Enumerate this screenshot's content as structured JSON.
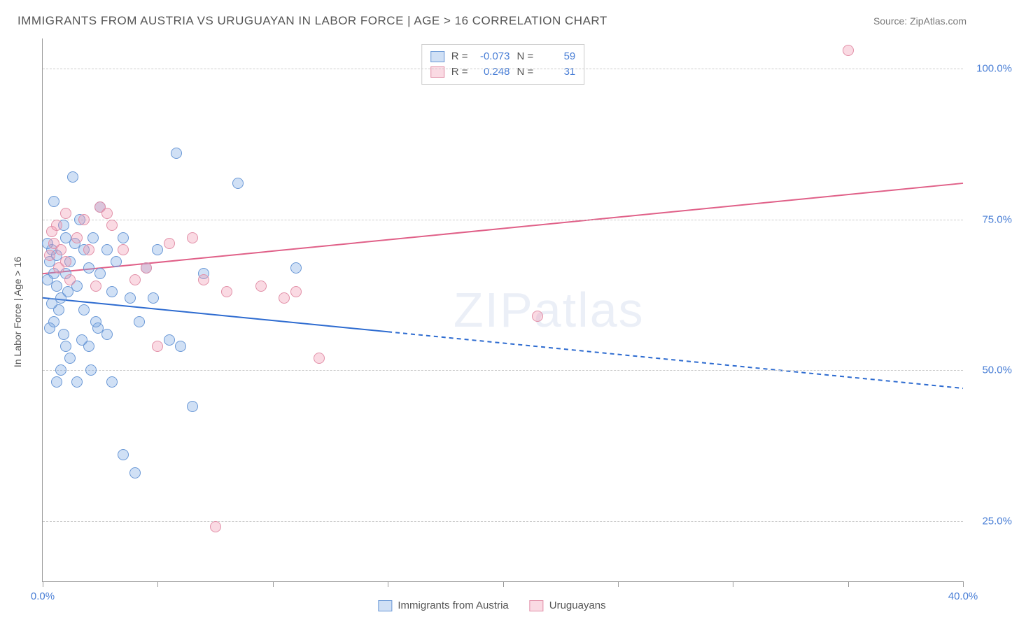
{
  "header": {
    "title": "IMMIGRANTS FROM AUSTRIA VS URUGUAYAN IN LABOR FORCE | AGE > 16 CORRELATION CHART",
    "source": "Source: ZipAtlas.com"
  },
  "watermark": "ZIPatlas",
  "chart": {
    "type": "scatter",
    "ylabel": "In Labor Force | Age > 16",
    "xlim": [
      0,
      40
    ],
    "ylim": [
      15,
      105
    ],
    "yticks": [
      {
        "value": 25,
        "label": "25.0%"
      },
      {
        "value": 50,
        "label": "50.0%"
      },
      {
        "value": 75,
        "label": "75.0%"
      },
      {
        "value": 100,
        "label": "100.0%"
      }
    ],
    "xticks_major": [
      0,
      40
    ],
    "xticks_minor": [
      5,
      10,
      15,
      20,
      25,
      30,
      35
    ],
    "xtick_labels": [
      {
        "value": 0,
        "label": "0.0%"
      },
      {
        "value": 40,
        "label": "40.0%"
      }
    ],
    "background": "#ffffff",
    "grid_color": "#cccccc",
    "axis_color": "#999999",
    "series": [
      {
        "name": "Immigrants from Austria",
        "fill": "rgba(120,165,225,0.35)",
        "stroke": "#6a98d6",
        "marker_radius": 8,
        "R": "-0.073",
        "N": "59",
        "trend": {
          "x1": 0,
          "y1": 62,
          "x2": 40,
          "y2": 47,
          "solid_until_x": 15,
          "color": "#2d6bd0",
          "width": 2
        },
        "points": [
          {
            "x": 0.3,
            "y": 68
          },
          {
            "x": 0.5,
            "y": 66
          },
          {
            "x": 0.6,
            "y": 64
          },
          {
            "x": 0.4,
            "y": 70
          },
          {
            "x": 0.8,
            "y": 62
          },
          {
            "x": 0.5,
            "y": 58
          },
          {
            "x": 0.7,
            "y": 60
          },
          {
            "x": 0.9,
            "y": 56
          },
          {
            "x": 1.0,
            "y": 72
          },
          {
            "x": 0.2,
            "y": 65
          },
          {
            "x": 0.6,
            "y": 69
          },
          {
            "x": 1.2,
            "y": 68
          },
          {
            "x": 1.4,
            "y": 71
          },
          {
            "x": 1.0,
            "y": 66
          },
          {
            "x": 1.5,
            "y": 64
          },
          {
            "x": 1.6,
            "y": 75
          },
          {
            "x": 1.8,
            "y": 70
          },
          {
            "x": 1.3,
            "y": 82
          },
          {
            "x": 2.0,
            "y": 67
          },
          {
            "x": 2.2,
            "y": 72
          },
          {
            "x": 2.4,
            "y": 57
          },
          {
            "x": 2.5,
            "y": 66
          },
          {
            "x": 2.8,
            "y": 70
          },
          {
            "x": 3.0,
            "y": 63
          },
          {
            "x": 3.2,
            "y": 68
          },
          {
            "x": 3.5,
            "y": 72
          },
          {
            "x": 1.0,
            "y": 54
          },
          {
            "x": 1.2,
            "y": 52
          },
          {
            "x": 0.8,
            "y": 50
          },
          {
            "x": 1.5,
            "y": 48
          },
          {
            "x": 0.6,
            "y": 48
          },
          {
            "x": 2.0,
            "y": 54
          },
          {
            "x": 2.3,
            "y": 58
          },
          {
            "x": 2.8,
            "y": 56
          },
          {
            "x": 3.0,
            "y": 48
          },
          {
            "x": 3.5,
            "y": 36
          },
          {
            "x": 4.0,
            "y": 33
          },
          {
            "x": 4.2,
            "y": 58
          },
          {
            "x": 4.5,
            "y": 67
          },
          {
            "x": 5.0,
            "y": 70
          },
          {
            "x": 5.5,
            "y": 55
          },
          {
            "x": 6.0,
            "y": 54
          },
          {
            "x": 6.5,
            "y": 44
          },
          {
            "x": 7.0,
            "y": 66
          },
          {
            "x": 8.5,
            "y": 81
          },
          {
            "x": 11.0,
            "y": 67
          },
          {
            "x": 5.8,
            "y": 86
          },
          {
            "x": 2.5,
            "y": 77
          },
          {
            "x": 1.8,
            "y": 60
          },
          {
            "x": 1.1,
            "y": 63
          },
          {
            "x": 0.4,
            "y": 61
          },
          {
            "x": 0.3,
            "y": 57
          },
          {
            "x": 0.2,
            "y": 71
          },
          {
            "x": 0.9,
            "y": 74
          },
          {
            "x": 1.7,
            "y": 55
          },
          {
            "x": 2.1,
            "y": 50
          },
          {
            "x": 3.8,
            "y": 62
          },
          {
            "x": 4.8,
            "y": 62
          },
          {
            "x": 0.5,
            "y": 78
          }
        ]
      },
      {
        "name": "Uruguayans",
        "fill": "rgba(240,150,175,0.35)",
        "stroke": "#e290a8",
        "marker_radius": 8,
        "R": "0.248",
        "N": "31",
        "trend": {
          "x1": 0,
          "y1": 66,
          "x2": 40,
          "y2": 81,
          "solid_until_x": 40,
          "color": "#e06088",
          "width": 2
        },
        "points": [
          {
            "x": 0.3,
            "y": 69
          },
          {
            "x": 0.5,
            "y": 71
          },
          {
            "x": 0.7,
            "y": 67
          },
          {
            "x": 0.4,
            "y": 73
          },
          {
            "x": 0.8,
            "y": 70
          },
          {
            "x": 1.0,
            "y": 68
          },
          {
            "x": 1.2,
            "y": 65
          },
          {
            "x": 1.5,
            "y": 72
          },
          {
            "x": 1.8,
            "y": 75
          },
          {
            "x": 2.0,
            "y": 70
          },
          {
            "x": 2.3,
            "y": 64
          },
          {
            "x": 2.5,
            "y": 77
          },
          {
            "x": 2.8,
            "y": 76
          },
          {
            "x": 3.0,
            "y": 74
          },
          {
            "x": 3.5,
            "y": 70
          },
          {
            "x": 4.0,
            "y": 65
          },
          {
            "x": 4.5,
            "y": 67
          },
          {
            "x": 5.0,
            "y": 54
          },
          {
            "x": 5.5,
            "y": 71
          },
          {
            "x": 6.5,
            "y": 72
          },
          {
            "x": 7.0,
            "y": 65
          },
          {
            "x": 7.5,
            "y": 24
          },
          {
            "x": 8.0,
            "y": 63
          },
          {
            "x": 9.5,
            "y": 64
          },
          {
            "x": 10.5,
            "y": 62
          },
          {
            "x": 12.0,
            "y": 52
          },
          {
            "x": 11.0,
            "y": 63
          },
          {
            "x": 21.5,
            "y": 59
          },
          {
            "x": 35.0,
            "y": 103
          },
          {
            "x": 1.0,
            "y": 76
          },
          {
            "x": 0.6,
            "y": 74
          }
        ]
      }
    ]
  },
  "legend": {
    "series1": "Immigrants from Austria",
    "series2": "Uruguayans"
  }
}
